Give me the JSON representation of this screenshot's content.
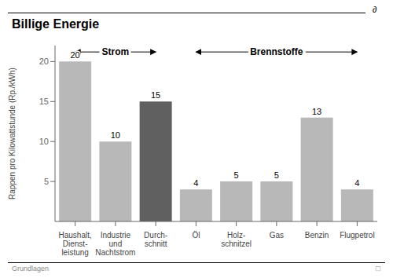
{
  "chart_data": {
    "type": "bar",
    "title": "Billige Energie",
    "categories": [
      "Haushalt,\nDienst-\nleistung",
      "Industrie\nund\nNachtstrom",
      "Durch-\nschnitt",
      "Öl",
      "Holz-\nschnitzel",
      "Gas",
      "Benzin",
      "Flugpetrol"
    ],
    "values": [
      20,
      10,
      15,
      4,
      5,
      5,
      13,
      4
    ],
    "colors": [
      "#b8b8b8",
      "#b8b8b8",
      "#606060",
      "#b8b8b8",
      "#b8b8b8",
      "#b8b8b8",
      "#b8b8b8",
      "#b8b8b8"
    ],
    "y_label": "Rappen pro Kilowattstunde (Rp./kWh)",
    "ylim": [
      0,
      22
    ],
    "yticks": [
      5,
      10,
      15,
      20
    ],
    "grid": false,
    "data_labels": true,
    "annotations": [
      {
        "text": "Strom",
        "from": "Haushalt,\nDienst-\nleistung",
        "to": "Durch-\nschnitt"
      },
      {
        "text": "Brennstoffe",
        "from": "Öl",
        "to": "Flugpetrol"
      },
      {
        "text": "∂"
      },
      {
        "text": "Grundlagen"
      },
      {
        "text": "□"
      }
    ]
  }
}
